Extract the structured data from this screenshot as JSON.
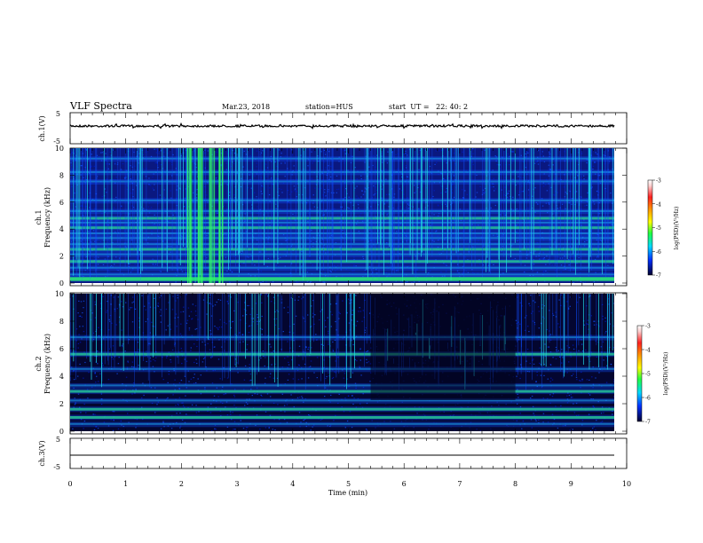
{
  "header": {
    "title": "VLF Spectra",
    "date": "Mar.23, 2018",
    "station": "station=HUS",
    "start": "start  UT =   22: 40: 2"
  },
  "chart_data": [
    {
      "type": "line",
      "panel": "ch1-waveform",
      "ylabel": "ch.1(V)",
      "ylim": [
        -5,
        5
      ],
      "yticks": [
        "5",
        "-5"
      ],
      "xlim": [
        0,
        10
      ],
      "series": [
        {
          "values": "noisy trace centred near 0 V, roughly ±0.4 V",
          "level": 0
        }
      ]
    },
    {
      "type": "heatmap",
      "panel": "ch1-spectrogram",
      "ylabel": "ch.1\nFrequency (kHz)",
      "ylim": [
        0,
        10
      ],
      "yticks": [
        "0",
        "2",
        "4",
        "6",
        "8",
        "10"
      ],
      "xlim": [
        0,
        9.85
      ],
      "colorbar": {
        "label": "log(PSD)(V²/Hz)",
        "range": [
          -7,
          -3
        ],
        "ticks": [
          "-3",
          "-4",
          "-5",
          "-6",
          "-7"
        ]
      },
      "bands_khz": [
        0.3,
        0.6,
        1.1,
        1.6,
        2.1,
        2.5,
        2.85,
        3.3,
        3.65,
        4.1,
        4.45,
        4.8,
        5.3,
        6.1,
        7.5,
        8.2,
        9.2
      ],
      "bright_bursts_min": [
        2.15,
        2.35,
        2.55,
        2.7
      ]
    },
    {
      "type": "heatmap",
      "panel": "ch2-spectrogram",
      "ylabel": "ch.2\nFrequency (kHz)",
      "ylim": [
        0,
        10
      ],
      "yticks": [
        "0",
        "2",
        "4",
        "6",
        "8",
        "10"
      ],
      "xlim": [
        0,
        9.85
      ],
      "colorbar": {
        "label": "log(PSD)(V²/Hz)",
        "range": [
          -7,
          -3
        ],
        "ticks": [
          "-3",
          "-4",
          "-5",
          "-6",
          "-7"
        ]
      },
      "bands_khz": [
        0.5,
        1.0,
        1.6,
        2.2,
        2.9,
        3.3,
        4.5,
        5.6,
        6.8
      ],
      "quiet_interval_min": [
        5.4,
        8.0
      ]
    },
    {
      "type": "line",
      "panel": "ch3-waveform",
      "ylabel": "ch.3(V)",
      "ylim": [
        -5,
        5
      ],
      "yticks": [
        "5",
        "-5"
      ],
      "xlim": [
        0,
        10
      ],
      "series": [
        {
          "values": "flat line",
          "level": -1
        }
      ]
    }
  ],
  "xaxis": {
    "label": "Time (min)",
    "ticks": [
      "0",
      "1",
      "2",
      "3",
      "4",
      "5",
      "6",
      "7",
      "8",
      "9",
      "10"
    ]
  },
  "colors": {
    "background": "#000020",
    "deep_blue": "#0018c8",
    "blue": "#1050ff",
    "cyan": "#20d8e8",
    "green": "#30ff60"
  }
}
